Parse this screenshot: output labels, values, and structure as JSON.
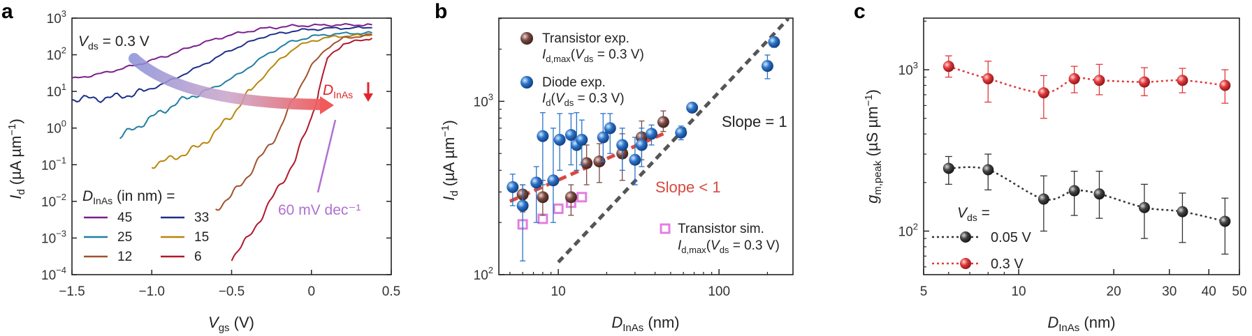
{
  "chart_data": [
    {
      "panel": "a",
      "type": "line",
      "xlabel": "Vgs (V)",
      "ylabel": "Id (µA µm⁻¹)",
      "xlim": [
        -1.5,
        0.5
      ],
      "ylim_log10": [
        -4,
        3
      ],
      "xticks": [
        "−1.5",
        "−1.0",
        "−0.5",
        "0",
        "0.5"
      ],
      "yticks": [
        "10-4",
        "10-3",
        "10-2",
        "10-1",
        "100",
        "101",
        "102",
        "103"
      ],
      "annotations": {
        "vds": "Vds = 0.3 V",
        "dinas": "DInAs",
        "slope": "60 mV dec⁻¹",
        "legend_title": "DInAs (in nm) ="
      },
      "series": [
        {
          "name": "45",
          "color": "#7b1f8c",
          "x": [
            -1.5,
            -1.3,
            -1.1,
            -0.9,
            -0.7,
            -0.5,
            -0.3,
            -0.1,
            0.1,
            0.38
          ],
          "log_y": [
            1.34,
            1.5,
            1.72,
            1.98,
            2.3,
            2.55,
            2.72,
            2.79,
            2.81,
            2.82
          ]
        },
        {
          "name": "33",
          "color": "#1d2f8a",
          "x": [
            -1.5,
            -1.35,
            -1.2,
            -1.05,
            -0.9,
            -0.7,
            -0.5,
            -0.3,
            -0.1,
            0.1,
            0.38
          ],
          "log_y": [
            0.8,
            0.8,
            0.86,
            1.0,
            1.26,
            1.68,
            2.14,
            2.5,
            2.66,
            2.72,
            2.74
          ]
        },
        {
          "name": "25",
          "color": "#1f7fa3",
          "x": [
            -1.2,
            -1.05,
            -0.9,
            -0.75,
            -0.6,
            -0.45,
            -0.3,
            -0.15,
            0.0,
            0.15,
            0.38
          ],
          "log_y": [
            -0.25,
            0.15,
            0.55,
            0.88,
            1.12,
            1.48,
            1.95,
            2.32,
            2.5,
            2.57,
            2.6
          ]
        },
        {
          "name": "15",
          "color": "#b8860b",
          "x": [
            -1.0,
            -0.9,
            -0.8,
            -0.7,
            -0.6,
            -0.5,
            -0.4,
            -0.3,
            -0.2,
            -0.1,
            0.0,
            0.15,
            0.38
          ],
          "log_y": [
            -1.0,
            -0.88,
            -0.7,
            -0.5,
            -0.1,
            0.35,
            0.92,
            1.42,
            1.86,
            2.2,
            2.38,
            2.5,
            2.54
          ]
        },
        {
          "name": "12",
          "color": "#a0522d",
          "x": [
            -0.6,
            -0.5,
            -0.4,
            -0.3,
            -0.2,
            -0.1,
            0.0,
            0.1,
            0.2,
            0.38
          ],
          "log_y": [
            -2.2,
            -1.85,
            -1.3,
            -0.7,
            -0.05,
            0.9,
            1.7,
            2.2,
            2.45,
            2.55
          ]
        },
        {
          "name": "6",
          "color": "#b2182b",
          "x": [
            -0.5,
            -0.45,
            -0.4,
            -0.35,
            -0.3,
            -0.2,
            -0.1,
            0.0,
            0.05,
            0.1,
            0.2,
            0.38
          ],
          "log_y": [
            -3.55,
            -3.25,
            -3.05,
            -2.7,
            -2.3,
            -1.6,
            -0.85,
            0.3,
            1.1,
            1.9,
            2.3,
            2.45
          ]
        }
      ]
    },
    {
      "panel": "b",
      "type": "scatter",
      "xlabel": "DInAs (nm)",
      "ylabel": "Id (µA µm⁻¹)",
      "xlim_log10": [
        0.63,
        2.46
      ],
      "ylim_log10": [
        2,
        3.48
      ],
      "xticks": [
        "10",
        "100"
      ],
      "yticks": [
        "102",
        "103"
      ],
      "annotations": {
        "slope1": "Slope = 1",
        "slope_lt1": "Slope < 1"
      },
      "legend": [
        {
          "name": "Transistor exp.",
          "sub": "Id,max(Vds = 0.3 V)",
          "color": "#7a4a44"
        },
        {
          "name": "Diode exp.",
          "sub": "Id(Vds = 0.3 V)",
          "color": "#2a73c8"
        },
        {
          "name": "Transistor sim.",
          "sub": "Id,max(Vds = 0.3 V)",
          "color": "#e27fe0"
        }
      ],
      "transistor_exp": [
        {
          "x": 6.0,
          "y": 290,
          "lo": 230,
          "hi": 330
        },
        {
          "x": 8.0,
          "y": 280,
          "lo": 220,
          "hi": 350
        },
        {
          "x": 12.0,
          "y": 280,
          "lo": 220,
          "hi": 330
        },
        {
          "x": 15.0,
          "y": 440,
          "lo": 330,
          "hi": 560
        },
        {
          "x": 18.0,
          "y": 450,
          "lo": 340,
          "hi": 570
        },
        {
          "x": 25.0,
          "y": 500,
          "lo": 350,
          "hi": 650
        },
        {
          "x": 33.0,
          "y": 620,
          "lo": 460,
          "hi": 770
        },
        {
          "x": 45.0,
          "y": 760,
          "lo": 670,
          "hi": 880
        }
      ],
      "diode_exp": [
        {
          "x": 5.2,
          "y": 320,
          "lo": 250,
          "hi": 380
        },
        {
          "x": 6.0,
          "y": 250,
          "lo": 120,
          "hi": 330
        },
        {
          "x": 7.3,
          "y": 340,
          "lo": 200,
          "hi": 420
        },
        {
          "x": 8.0,
          "y": 630,
          "lo": 330,
          "hi": 860
        },
        {
          "x": 9.3,
          "y": 350,
          "lo": 200,
          "hi": 700
        },
        {
          "x": 10.2,
          "y": 600,
          "lo": 400,
          "hi": 850
        },
        {
          "x": 12.0,
          "y": 640,
          "lo": 430,
          "hi": 850
        },
        {
          "x": 13.0,
          "y": 560,
          "lo": 400,
          "hi": 860
        },
        {
          "x": 14.0,
          "y": 600,
          "lo": 430,
          "hi": 780
        },
        {
          "x": 19.0,
          "y": 620,
          "lo": 450,
          "hi": 850
        },
        {
          "x": 21.0,
          "y": 700,
          "lo": 500,
          "hi": 850
        },
        {
          "x": 25.0,
          "y": 560,
          "lo": 400,
          "hi": 700
        },
        {
          "x": 30.0,
          "y": 460,
          "lo": 330,
          "hi": 620
        },
        {
          "x": 33.0,
          "y": 560,
          "lo": 420,
          "hi": 700
        },
        {
          "x": 38.0,
          "y": 650,
          "lo": 560,
          "hi": 730
        },
        {
          "x": 58.0,
          "y": 660,
          "lo": 600,
          "hi": 720
        },
        {
          "x": 68.0,
          "y": 920,
          "lo": 880,
          "hi": 960
        },
        {
          "x": 200.0,
          "y": 1600,
          "lo": 1350,
          "hi": 1850
        },
        {
          "x": 220.0,
          "y": 2200,
          "lo": 2050,
          "hi": 2350
        }
      ],
      "transistor_sim": [
        {
          "x": 6.0,
          "y": 195
        },
        {
          "x": 8.0,
          "y": 210
        },
        {
          "x": 10.0,
          "y": 240
        },
        {
          "x": 12.0,
          "y": 260
        },
        {
          "x": 14.0,
          "y": 280
        }
      ],
      "fit_slope1": {
        "x": [
          10,
          270
        ],
        "y": [
          118,
          3000
        ]
      },
      "fit_slope_lt1": {
        "x": [
          5,
          45
        ],
        "y": [
          265,
          650
        ]
      }
    },
    {
      "panel": "c",
      "type": "line",
      "xlabel": "DInAs (nm)",
      "ylabel": "gm,peak (µS µm⁻¹)",
      "xlim_log10": [
        0.69897,
        1.69897
      ],
      "ylim_log10": [
        1.73,
        3.32
      ],
      "xticks": [
        "5",
        "10",
        "20",
        "30",
        "40",
        "50"
      ],
      "yticks": [
        "102",
        "103"
      ],
      "legend_title": "Vds =",
      "series": [
        {
          "name": "0.05 V",
          "color": "#333333",
          "x": [
            6,
            8,
            12,
            15,
            18,
            25,
            33,
            45
          ],
          "y": [
            245,
            240,
            158,
            178,
            170,
            140,
            132,
            115
          ],
          "lo": [
            195,
            180,
            100,
            125,
            120,
            90,
            85,
            72
          ],
          "hi": [
            290,
            300,
            220,
            235,
            235,
            195,
            172,
            160
          ]
        },
        {
          "name": "0.3 V",
          "color": "#e0393c",
          "x": [
            6,
            8,
            12,
            15,
            18,
            25,
            33,
            45
          ],
          "y": [
            1050,
            880,
            720,
            880,
            860,
            840,
            860,
            800
          ],
          "lo": [
            900,
            630,
            500,
            720,
            700,
            690,
            720,
            620
          ],
          "hi": [
            1220,
            1130,
            920,
            1050,
            1080,
            1030,
            1020,
            1000
          ]
        }
      ]
    }
  ]
}
